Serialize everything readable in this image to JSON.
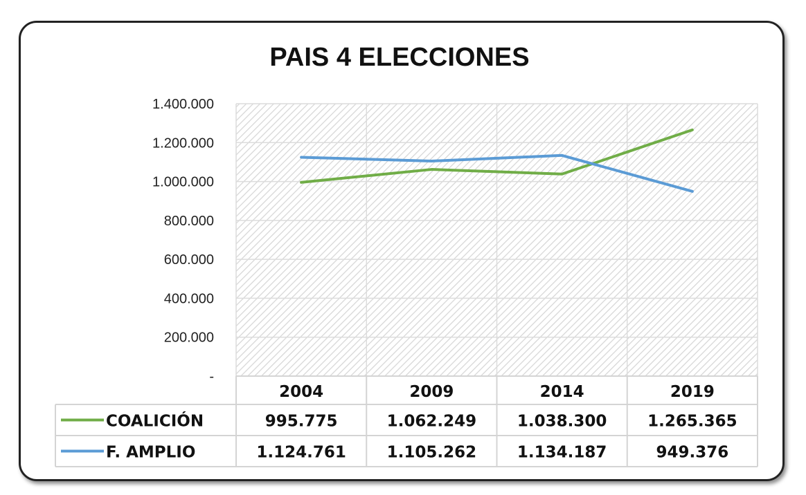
{
  "chart_data": {
    "type": "line",
    "title": "PAIS  4 ELECCIONES",
    "categories": [
      "2004",
      "2009",
      "2014",
      "2019"
    ],
    "series": [
      {
        "name": "COALICIÓN",
        "color": "#70ad47",
        "values": [
          995775,
          1062249,
          1038300,
          1265365
        ],
        "labels": [
          "995.775",
          "1.062.249",
          "1.038.300",
          "1.265.365"
        ]
      },
      {
        "name": "F. AMPLIO",
        "color": "#5b9bd5",
        "values": [
          1124761,
          1105262,
          1134187,
          949376
        ],
        "labels": [
          "1.124.761",
          "1.105.262",
          "1.134.187",
          "949.376"
        ]
      }
    ],
    "ylim": [
      0,
      1400000
    ],
    "yticks": [
      0,
      200000,
      400000,
      600000,
      800000,
      1000000,
      1200000,
      1400000
    ],
    "ytick_labels": [
      "-",
      "200.000",
      "400.000",
      "600.000",
      "800.000",
      "1.000.000",
      "1.200.000",
      "1.400.000"
    ],
    "grid": true,
    "legend": "data-table",
    "plot_background": "diagonal-hatch"
  }
}
